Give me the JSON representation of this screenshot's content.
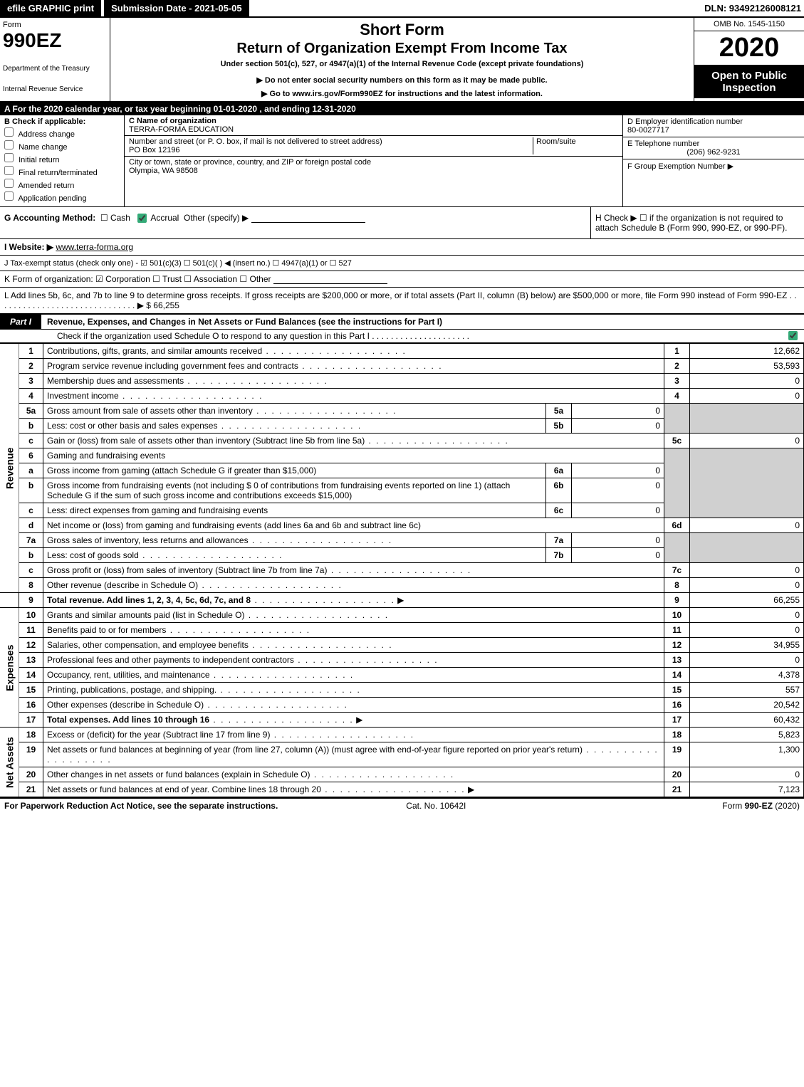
{
  "topbar": {
    "efile": "efile GRAPHIC print",
    "subdate": "Submission Date - 2021-05-05",
    "dln": "DLN: 93492126008121"
  },
  "header": {
    "form_label": "Form",
    "form_num": "990EZ",
    "dept1": "Department of the Treasury",
    "dept2": "Internal Revenue Service",
    "short_form": "Short Form",
    "return_title": "Return of Organization Exempt From Income Tax",
    "under_sec": "Under section 501(c), 527, or 4947(a)(1) of the Internal Revenue Code (except private foundations)",
    "donot": "▶ Do not enter social security numbers on this form as it may be made public.",
    "goto": "▶ Go to www.irs.gov/Form990EZ for instructions and the latest information.",
    "omb": "OMB No. 1545-1150",
    "year": "2020",
    "open": "Open to Public Inspection"
  },
  "period": {
    "text_a": "A  For the 2020 calendar year, or tax year beginning ",
    "begin": "01-01-2020",
    "mid": " , and ending ",
    "end": "12-31-2020"
  },
  "B": {
    "hdr": "B  Check if applicable:",
    "opts": [
      "Address change",
      "Name change",
      "Initial return",
      "Final return/terminated",
      "Amended return",
      "Application pending"
    ]
  },
  "C": {
    "name_lbl": "C Name of organization",
    "name": "TERRA-FORMA EDUCATION",
    "street_lbl": "Number and street (or P. O. box, if mail is not delivered to street address)",
    "room_lbl": "Room/suite",
    "street": "PO Box 12196",
    "city_lbl": "City or town, state or province, country, and ZIP or foreign postal code",
    "city": "Olympia, WA  98508"
  },
  "D": {
    "ein_lbl": "D Employer identification number",
    "ein": "80-0027717",
    "tel_lbl": "E Telephone number",
    "tel": "(206) 962-9231",
    "grp_lbl": "F Group Exemption Number  ▶"
  },
  "G": {
    "lbl": "G Accounting Method:",
    "cash": "Cash",
    "accrual": "Accrual",
    "other": "Other (specify) ▶"
  },
  "H": {
    "text": "H  Check ▶  ☐  if the organization is not required to attach Schedule B (Form 990, 990-EZ, or 990-PF)."
  },
  "I": {
    "lbl": "I Website: ▶",
    "val": "www.terra-forma.org"
  },
  "J": {
    "text": "J Tax-exempt status (check only one) - ☑ 501(c)(3)  ☐ 501(c)(  ) ◀ (insert no.)  ☐ 4947(a)(1) or  ☐ 527"
  },
  "K": {
    "text": "K Form of organization:  ☑ Corporation   ☐ Trust   ☐ Association   ☐ Other"
  },
  "L": {
    "text": "L Add lines 5b, 6c, and 7b to line 9 to determine gross receipts. If gross receipts are $200,000 or more, or if total assets (Part II, column (B) below) are $500,000 or more, file Form 990 instead of Form 990-EZ  .  .  .  .  .  .  .  .  .  .  .  .  .  .  .  .  .  .  .  .  .  .  .  .  .  .  .  .  .  .  ▶ $ 66,255"
  },
  "part1": {
    "lbl": "Part I",
    "title": "Revenue, Expenses, and Changes in Net Assets or Fund Balances (see the instructions for Part I)",
    "sub": "Check if the organization used Schedule O to respond to any question in this Part I  .  .  .  .  .  .  .  .  .  .  .  .  .  .  .  .  .  .  .  .  ."
  },
  "sidebar": {
    "revenue": "Revenue",
    "expenses": "Expenses",
    "netassets": "Net Assets"
  },
  "lines": {
    "l1": {
      "n": "1",
      "d": "Contributions, gifts, grants, and similar amounts received",
      "box": "1",
      "amt": "12,662"
    },
    "l2": {
      "n": "2",
      "d": "Program service revenue including government fees and contracts",
      "box": "2",
      "amt": "53,593"
    },
    "l3": {
      "n": "3",
      "d": "Membership dues and assessments",
      "box": "3",
      "amt": "0"
    },
    "l4": {
      "n": "4",
      "d": "Investment income",
      "box": "4",
      "amt": "0"
    },
    "l5a": {
      "n": "5a",
      "d": "Gross amount from sale of assets other than inventory",
      "ibox": "5a",
      "ival": "0"
    },
    "l5b": {
      "n": "b",
      "d": "Less: cost or other basis and sales expenses",
      "ibox": "5b",
      "ival": "0"
    },
    "l5c": {
      "n": "c",
      "d": "Gain or (loss) from sale of assets other than inventory (Subtract line 5b from line 5a)",
      "box": "5c",
      "amt": "0"
    },
    "l6": {
      "n": "6",
      "d": "Gaming and fundraising events"
    },
    "l6a": {
      "n": "a",
      "d": "Gross income from gaming (attach Schedule G if greater than $15,000)",
      "ibox": "6a",
      "ival": "0"
    },
    "l6b": {
      "n": "b",
      "d": "Gross income from fundraising events (not including $  0                of contributions from fundraising events reported on line 1) (attach Schedule G if the sum of such gross income and contributions exceeds $15,000)",
      "ibox": "6b",
      "ival": "0"
    },
    "l6c": {
      "n": "c",
      "d": "Less: direct expenses from gaming and fundraising events",
      "ibox": "6c",
      "ival": "0"
    },
    "l6d": {
      "n": "d",
      "d": "Net income or (loss) from gaming and fundraising events (add lines 6a and 6b and subtract line 6c)",
      "box": "6d",
      "amt": "0"
    },
    "l7a": {
      "n": "7a",
      "d": "Gross sales of inventory, less returns and allowances",
      "ibox": "7a",
      "ival": "0"
    },
    "l7b": {
      "n": "b",
      "d": "Less: cost of goods sold",
      "ibox": "7b",
      "ival": "0"
    },
    "l7c": {
      "n": "c",
      "d": "Gross profit or (loss) from sales of inventory (Subtract line 7b from line 7a)",
      "box": "7c",
      "amt": "0"
    },
    "l8": {
      "n": "8",
      "d": "Other revenue (describe in Schedule O)",
      "box": "8",
      "amt": "0"
    },
    "l9": {
      "n": "9",
      "d": "Total revenue. Add lines 1, 2, 3, 4, 5c, 6d, 7c, and 8",
      "box": "9",
      "amt": "66,255",
      "bold": true,
      "arrow": true
    },
    "l10": {
      "n": "10",
      "d": "Grants and similar amounts paid (list in Schedule O)",
      "box": "10",
      "amt": "0"
    },
    "l11": {
      "n": "11",
      "d": "Benefits paid to or for members",
      "box": "11",
      "amt": "0"
    },
    "l12": {
      "n": "12",
      "d": "Salaries, other compensation, and employee benefits",
      "box": "12",
      "amt": "34,955"
    },
    "l13": {
      "n": "13",
      "d": "Professional fees and other payments to independent contractors",
      "box": "13",
      "amt": "0"
    },
    "l14": {
      "n": "14",
      "d": "Occupancy, rent, utilities, and maintenance",
      "box": "14",
      "amt": "4,378"
    },
    "l15": {
      "n": "15",
      "d": "Printing, publications, postage, and shipping.",
      "box": "15",
      "amt": "557"
    },
    "l16": {
      "n": "16",
      "d": "Other expenses (describe in Schedule O)",
      "box": "16",
      "amt": "20,542"
    },
    "l17": {
      "n": "17",
      "d": "Total expenses. Add lines 10 through 16",
      "box": "17",
      "amt": "60,432",
      "bold": true,
      "arrow": true
    },
    "l18": {
      "n": "18",
      "d": "Excess or (deficit) for the year (Subtract line 17 from line 9)",
      "box": "18",
      "amt": "5,823"
    },
    "l19": {
      "n": "19",
      "d": "Net assets or fund balances at beginning of year (from line 27, column (A)) (must agree with end-of-year figure reported on prior year's return)",
      "box": "19",
      "amt": "1,300"
    },
    "l20": {
      "n": "20",
      "d": "Other changes in net assets or fund balances (explain in Schedule O)",
      "box": "20",
      "amt": "0"
    },
    "l21": {
      "n": "21",
      "d": "Net assets or fund balances at end of year. Combine lines 18 through 20",
      "box": "21",
      "amt": "7,123",
      "arrow": true
    }
  },
  "footer": {
    "left": "For Paperwork Reduction Act Notice, see the separate instructions.",
    "mid": "Cat. No. 10642I",
    "right": "Form 990-EZ (2020)"
  },
  "colors": {
    "black": "#000000",
    "shade": "#d0d0d0",
    "check": "#33aa77"
  }
}
